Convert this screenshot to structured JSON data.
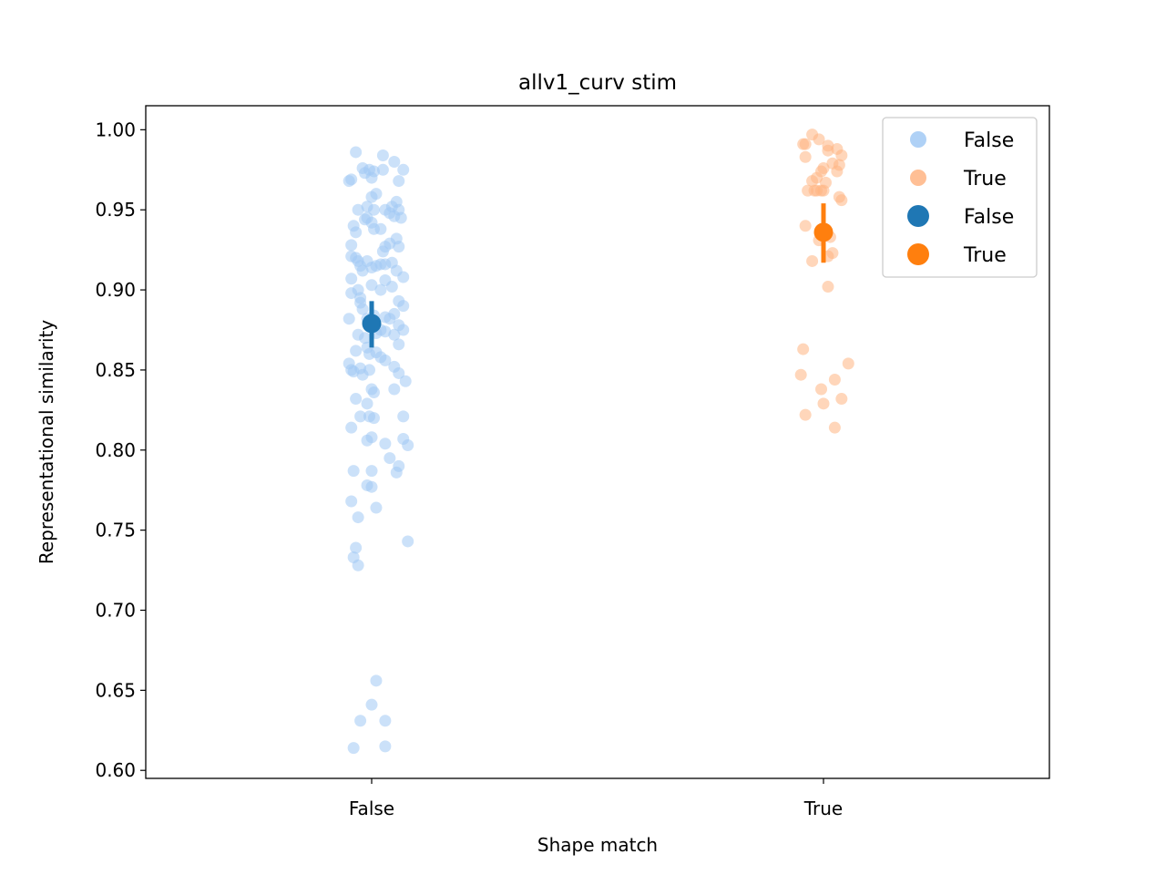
{
  "chart_data": {
    "type": "scatter",
    "title": "allv1_curv stim",
    "xlabel": "Shape match",
    "ylabel": "Representational similarity",
    "categories": [
      "False",
      "True"
    ],
    "ylim": [
      0.595,
      1.015
    ],
    "yticks": [
      0.6,
      0.65,
      0.7,
      0.75,
      0.8,
      0.85,
      0.9,
      0.95,
      1.0
    ],
    "ytick_labels": [
      "0.60",
      "0.65",
      "0.70",
      "0.75",
      "0.80",
      "0.85",
      "0.90",
      "0.95",
      "1.00"
    ],
    "grid": false,
    "legend_position": "top-right",
    "colors": {
      "False_light": "#a1c9f4",
      "True_light": "#ffb482",
      "False_dark": "#1f77b4",
      "True_dark": "#ff7f0e"
    },
    "series": [
      {
        "name": "False",
        "kind": "strip",
        "category": "False",
        "color": "#a1c9f4",
        "points": [
          [
            -0.07,
            0.986
          ],
          [
            -0.04,
            0.976
          ],
          [
            -0.03,
            0.973
          ],
          [
            -0.01,
            0.975
          ],
          [
            0.01,
            0.974
          ],
          [
            0.05,
            0.984
          ],
          [
            0.1,
            0.98
          ],
          [
            0.14,
            0.975
          ],
          [
            -0.1,
            0.968
          ],
          [
            -0.09,
            0.969
          ],
          [
            0.0,
            0.97
          ],
          [
            0.05,
            0.975
          ],
          [
            0.12,
            0.968
          ],
          [
            -0.06,
            0.95
          ],
          [
            -0.02,
            0.952
          ],
          [
            0.0,
            0.958
          ],
          [
            0.02,
            0.96
          ],
          [
            0.06,
            0.95
          ],
          [
            0.09,
            0.952
          ],
          [
            0.11,
            0.955
          ],
          [
            0.12,
            0.95
          ],
          [
            -0.03,
            0.944
          ],
          [
            -0.02,
            0.945
          ],
          [
            0.0,
            0.942
          ],
          [
            0.01,
            0.95
          ],
          [
            0.08,
            0.948
          ],
          [
            0.1,
            0.946
          ],
          [
            0.13,
            0.945
          ],
          [
            -0.08,
            0.94
          ],
          [
            -0.07,
            0.936
          ],
          [
            0.01,
            0.938
          ],
          [
            0.04,
            0.938
          ],
          [
            0.05,
            0.924
          ],
          [
            0.06,
            0.927
          ],
          [
            0.08,
            0.929
          ],
          [
            0.11,
            0.932
          ],
          [
            0.12,
            0.927
          ],
          [
            -0.09,
            0.928
          ],
          [
            -0.09,
            0.921
          ],
          [
            -0.07,
            0.92
          ],
          [
            -0.06,
            0.918
          ],
          [
            -0.05,
            0.915
          ],
          [
            -0.04,
            0.912
          ],
          [
            -0.02,
            0.918
          ],
          [
            0.0,
            0.914
          ],
          [
            0.02,
            0.915
          ],
          [
            0.04,
            0.916
          ],
          [
            0.06,
            0.916
          ],
          [
            0.09,
            0.917
          ],
          [
            0.11,
            0.912
          ],
          [
            0.14,
            0.908
          ],
          [
            -0.09,
            0.907
          ],
          [
            -0.09,
            0.898
          ],
          [
            -0.06,
            0.9
          ],
          [
            -0.05,
            0.895
          ],
          [
            -0.05,
            0.892
          ],
          [
            0.0,
            0.903
          ],
          [
            0.04,
            0.9
          ],
          [
            0.06,
            0.906
          ],
          [
            0.09,
            0.902
          ],
          [
            0.12,
            0.893
          ],
          [
            0.14,
            0.89
          ],
          [
            -0.1,
            0.882
          ],
          [
            -0.04,
            0.888
          ],
          [
            -0.02,
            0.882
          ],
          [
            0.0,
            0.878
          ],
          [
            0.01,
            0.884
          ],
          [
            0.06,
            0.883
          ],
          [
            0.08,
            0.882
          ],
          [
            0.1,
            0.885
          ],
          [
            0.12,
            0.878
          ],
          [
            0.14,
            0.875
          ],
          [
            -0.06,
            0.872
          ],
          [
            -0.03,
            0.87
          ],
          [
            0.02,
            0.873
          ],
          [
            0.04,
            0.875
          ],
          [
            0.06,
            0.874
          ],
          [
            0.1,
            0.872
          ],
          [
            0.12,
            0.866
          ],
          [
            -0.07,
            0.862
          ],
          [
            -0.02,
            0.864
          ],
          [
            -0.01,
            0.86
          ],
          [
            0.02,
            0.861
          ],
          [
            0.04,
            0.858
          ],
          [
            0.06,
            0.856
          ],
          [
            -0.1,
            0.854
          ],
          [
            -0.09,
            0.85
          ],
          [
            -0.08,
            0.849
          ],
          [
            -0.05,
            0.851
          ],
          [
            -0.04,
            0.847
          ],
          [
            -0.01,
            0.85
          ],
          [
            0.1,
            0.852
          ],
          [
            0.12,
            0.848
          ],
          [
            0.15,
            0.843
          ],
          [
            0.0,
            0.838
          ],
          [
            0.01,
            0.836
          ],
          [
            0.1,
            0.838
          ],
          [
            -0.07,
            0.832
          ],
          [
            -0.02,
            0.829
          ],
          [
            -0.05,
            0.821
          ],
          [
            -0.01,
            0.821
          ],
          [
            0.01,
            0.82
          ],
          [
            0.14,
            0.821
          ],
          [
            -0.09,
            0.814
          ],
          [
            -0.02,
            0.806
          ],
          [
            0.0,
            0.808
          ],
          [
            0.06,
            0.804
          ],
          [
            0.14,
            0.807
          ],
          [
            0.16,
            0.803
          ],
          [
            0.08,
            0.795
          ],
          [
            0.12,
            0.79
          ],
          [
            -0.08,
            0.787
          ],
          [
            0.0,
            0.787
          ],
          [
            0.11,
            0.786
          ],
          [
            -0.02,
            0.778
          ],
          [
            0.0,
            0.777
          ],
          [
            -0.09,
            0.768
          ],
          [
            0.02,
            0.764
          ],
          [
            -0.06,
            0.758
          ],
          [
            0.16,
            0.743
          ],
          [
            -0.07,
            0.739
          ],
          [
            -0.08,
            0.733
          ],
          [
            -0.06,
            0.728
          ],
          [
            0.02,
            0.656
          ],
          [
            0.0,
            0.641
          ],
          [
            -0.05,
            0.631
          ],
          [
            0.06,
            0.631
          ],
          [
            -0.08,
            0.614
          ],
          [
            0.06,
            0.615
          ]
        ]
      },
      {
        "name": "True",
        "kind": "strip",
        "category": "True",
        "color": "#ffb482",
        "points": [
          [
            -0.09,
            0.991
          ],
          [
            -0.08,
            0.991
          ],
          [
            -0.05,
            0.997
          ],
          [
            -0.02,
            0.994
          ],
          [
            0.02,
            0.99
          ],
          [
            0.02,
            0.987
          ],
          [
            0.06,
            0.988
          ],
          [
            0.08,
            0.984
          ],
          [
            -0.08,
            0.983
          ],
          [
            0.04,
            0.979
          ],
          [
            0.07,
            0.978
          ],
          [
            0.0,
            0.976
          ],
          [
            -0.01,
            0.974
          ],
          [
            0.06,
            0.974
          ],
          [
            -0.03,
            0.97
          ],
          [
            -0.05,
            0.968
          ],
          [
            0.01,
            0.967
          ],
          [
            -0.07,
            0.962
          ],
          [
            -0.04,
            0.962
          ],
          [
            -0.03,
            0.962
          ],
          [
            -0.01,
            0.962
          ],
          [
            0.0,
            0.962
          ],
          [
            0.07,
            0.958
          ],
          [
            0.08,
            0.956
          ],
          [
            -0.08,
            0.94
          ],
          [
            -0.02,
            0.931
          ],
          [
            0.03,
            0.933
          ],
          [
            0.04,
            0.923
          ],
          [
            0.02,
            0.921
          ],
          [
            -0.05,
            0.918
          ],
          [
            0.02,
            0.902
          ],
          [
            -0.09,
            0.863
          ],
          [
            -0.1,
            0.847
          ],
          [
            0.11,
            0.854
          ],
          [
            0.05,
            0.844
          ],
          [
            -0.01,
            0.838
          ],
          [
            0.08,
            0.832
          ],
          [
            0.0,
            0.829
          ],
          [
            -0.08,
            0.822
          ],
          [
            0.05,
            0.814
          ]
        ]
      },
      {
        "name": "False",
        "kind": "pointplot",
        "category": "False",
        "color": "#1f77b4",
        "mean": 0.879,
        "ci": [
          0.864,
          0.893
        ]
      },
      {
        "name": "True",
        "kind": "pointplot",
        "category": "True",
        "color": "#ff7f0e",
        "mean": 0.936,
        "ci": [
          0.917,
          0.954
        ]
      }
    ]
  }
}
